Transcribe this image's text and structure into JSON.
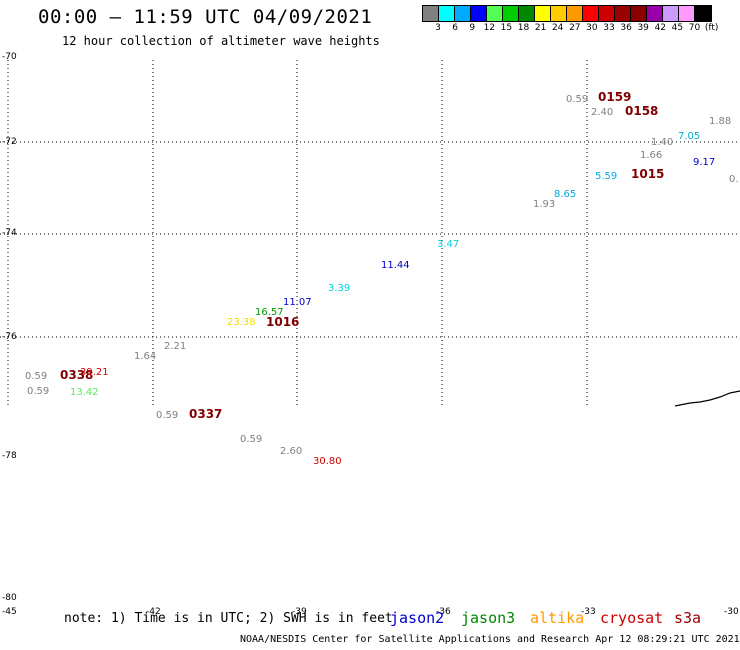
{
  "title": "00:00 — 11:59 UTC 04/09/2021",
  "subtitle": "12 hour collection of altimeter wave heights",
  "colorbar": {
    "colors": [
      "#808080",
      "#00ffff",
      "#00aaff",
      "#0000ff",
      "#55ff55",
      "#00cc00",
      "#008800",
      "#ffff00",
      "#ffcc00",
      "#ff9900",
      "#ff0000",
      "#cc0000",
      "#990000",
      "#880000",
      "#9900aa",
      "#cc99ff",
      "#ff99ff",
      "#000000"
    ],
    "ticks": [
      "3",
      "6",
      "9",
      "12",
      "15",
      "18",
      "21",
      "24",
      "27",
      "30",
      "33",
      "36",
      "39",
      "42",
      "45",
      "70",
      "(ft)"
    ]
  },
  "axes": {
    "lat_labels": [
      "-70",
      "-72",
      "-74",
      "-76",
      "-78",
      "-80"
    ],
    "lon_labels": [
      "-45",
      "-42",
      "-39",
      "-36",
      "-33",
      "-30"
    ]
  },
  "wave_labels": [
    {
      "text": "0.59",
      "color": "#808080"
    },
    {
      "text": "0159",
      "color": "#800000",
      "big": true
    },
    {
      "text": "2.40",
      "color": "#808080"
    },
    {
      "text": "0158",
      "color": "#800000",
      "big": true
    },
    {
      "text": "1.88",
      "color": "#808080"
    },
    {
      "text": "1.40",
      "color": "#808080"
    },
    {
      "text": "7.05",
      "color": "#00aacc"
    },
    {
      "text": "1.66",
      "color": "#808080"
    },
    {
      "text": "9.17",
      "color": "#0000cc"
    },
    {
      "text": "5.59",
      "color": "#00aadd"
    },
    {
      "text": "1015",
      "color": "#800000",
      "big": true
    },
    {
      "text": "0.",
      "color": "#808080"
    },
    {
      "text": "8.65",
      "color": "#00aadd"
    },
    {
      "text": "1.93",
      "color": "#808080"
    },
    {
      "text": "3.47",
      "color": "#00ccdd"
    },
    {
      "text": "11.44",
      "color": "#0000cc"
    },
    {
      "text": "3.39",
      "color": "#00ccdd"
    },
    {
      "text": "11.07",
      "color": "#0000cc"
    },
    {
      "text": "16.57",
      "color": "#009900"
    },
    {
      "text": "23.38",
      "color": "#eedd00"
    },
    {
      "text": "1016",
      "color": "#800000",
      "big": true
    },
    {
      "text": "2.21",
      "color": "#808080"
    },
    {
      "text": "1.64",
      "color": "#808080"
    },
    {
      "text": "0.59",
      "color": "#808080"
    },
    {
      "text": "0338",
      "color": "#800000",
      "big": true
    },
    {
      "text": "39.21",
      "color": "#cc0000"
    },
    {
      "text": "0.59",
      "color": "#808080"
    },
    {
      "text": "13.42",
      "color": "#55ee55"
    },
    {
      "text": "0.59",
      "color": "#808080"
    },
    {
      "text": "0337",
      "color": "#800000",
      "big": true
    },
    {
      "text": "0.59",
      "color": "#808080"
    },
    {
      "text": "2.60",
      "color": "#808080"
    },
    {
      "text": "30.80",
      "color": "#cc0000"
    }
  ],
  "note": "note: 1) Time is in UTC; 2) SWH is in feet",
  "satellites": [
    {
      "name": "jason2",
      "color": "#0000cc"
    },
    {
      "name": "jason3",
      "color": "#008800"
    },
    {
      "name": "altika",
      "color": "#ff9900"
    },
    {
      "name": "cryosat",
      "color": "#cc0000"
    },
    {
      "name": "s3a",
      "color": "#990000"
    }
  ],
  "footer": "NOAA/NESDIS Center for Satellite Applications and Research   Apr 12 08:29:21 UTC 2021"
}
